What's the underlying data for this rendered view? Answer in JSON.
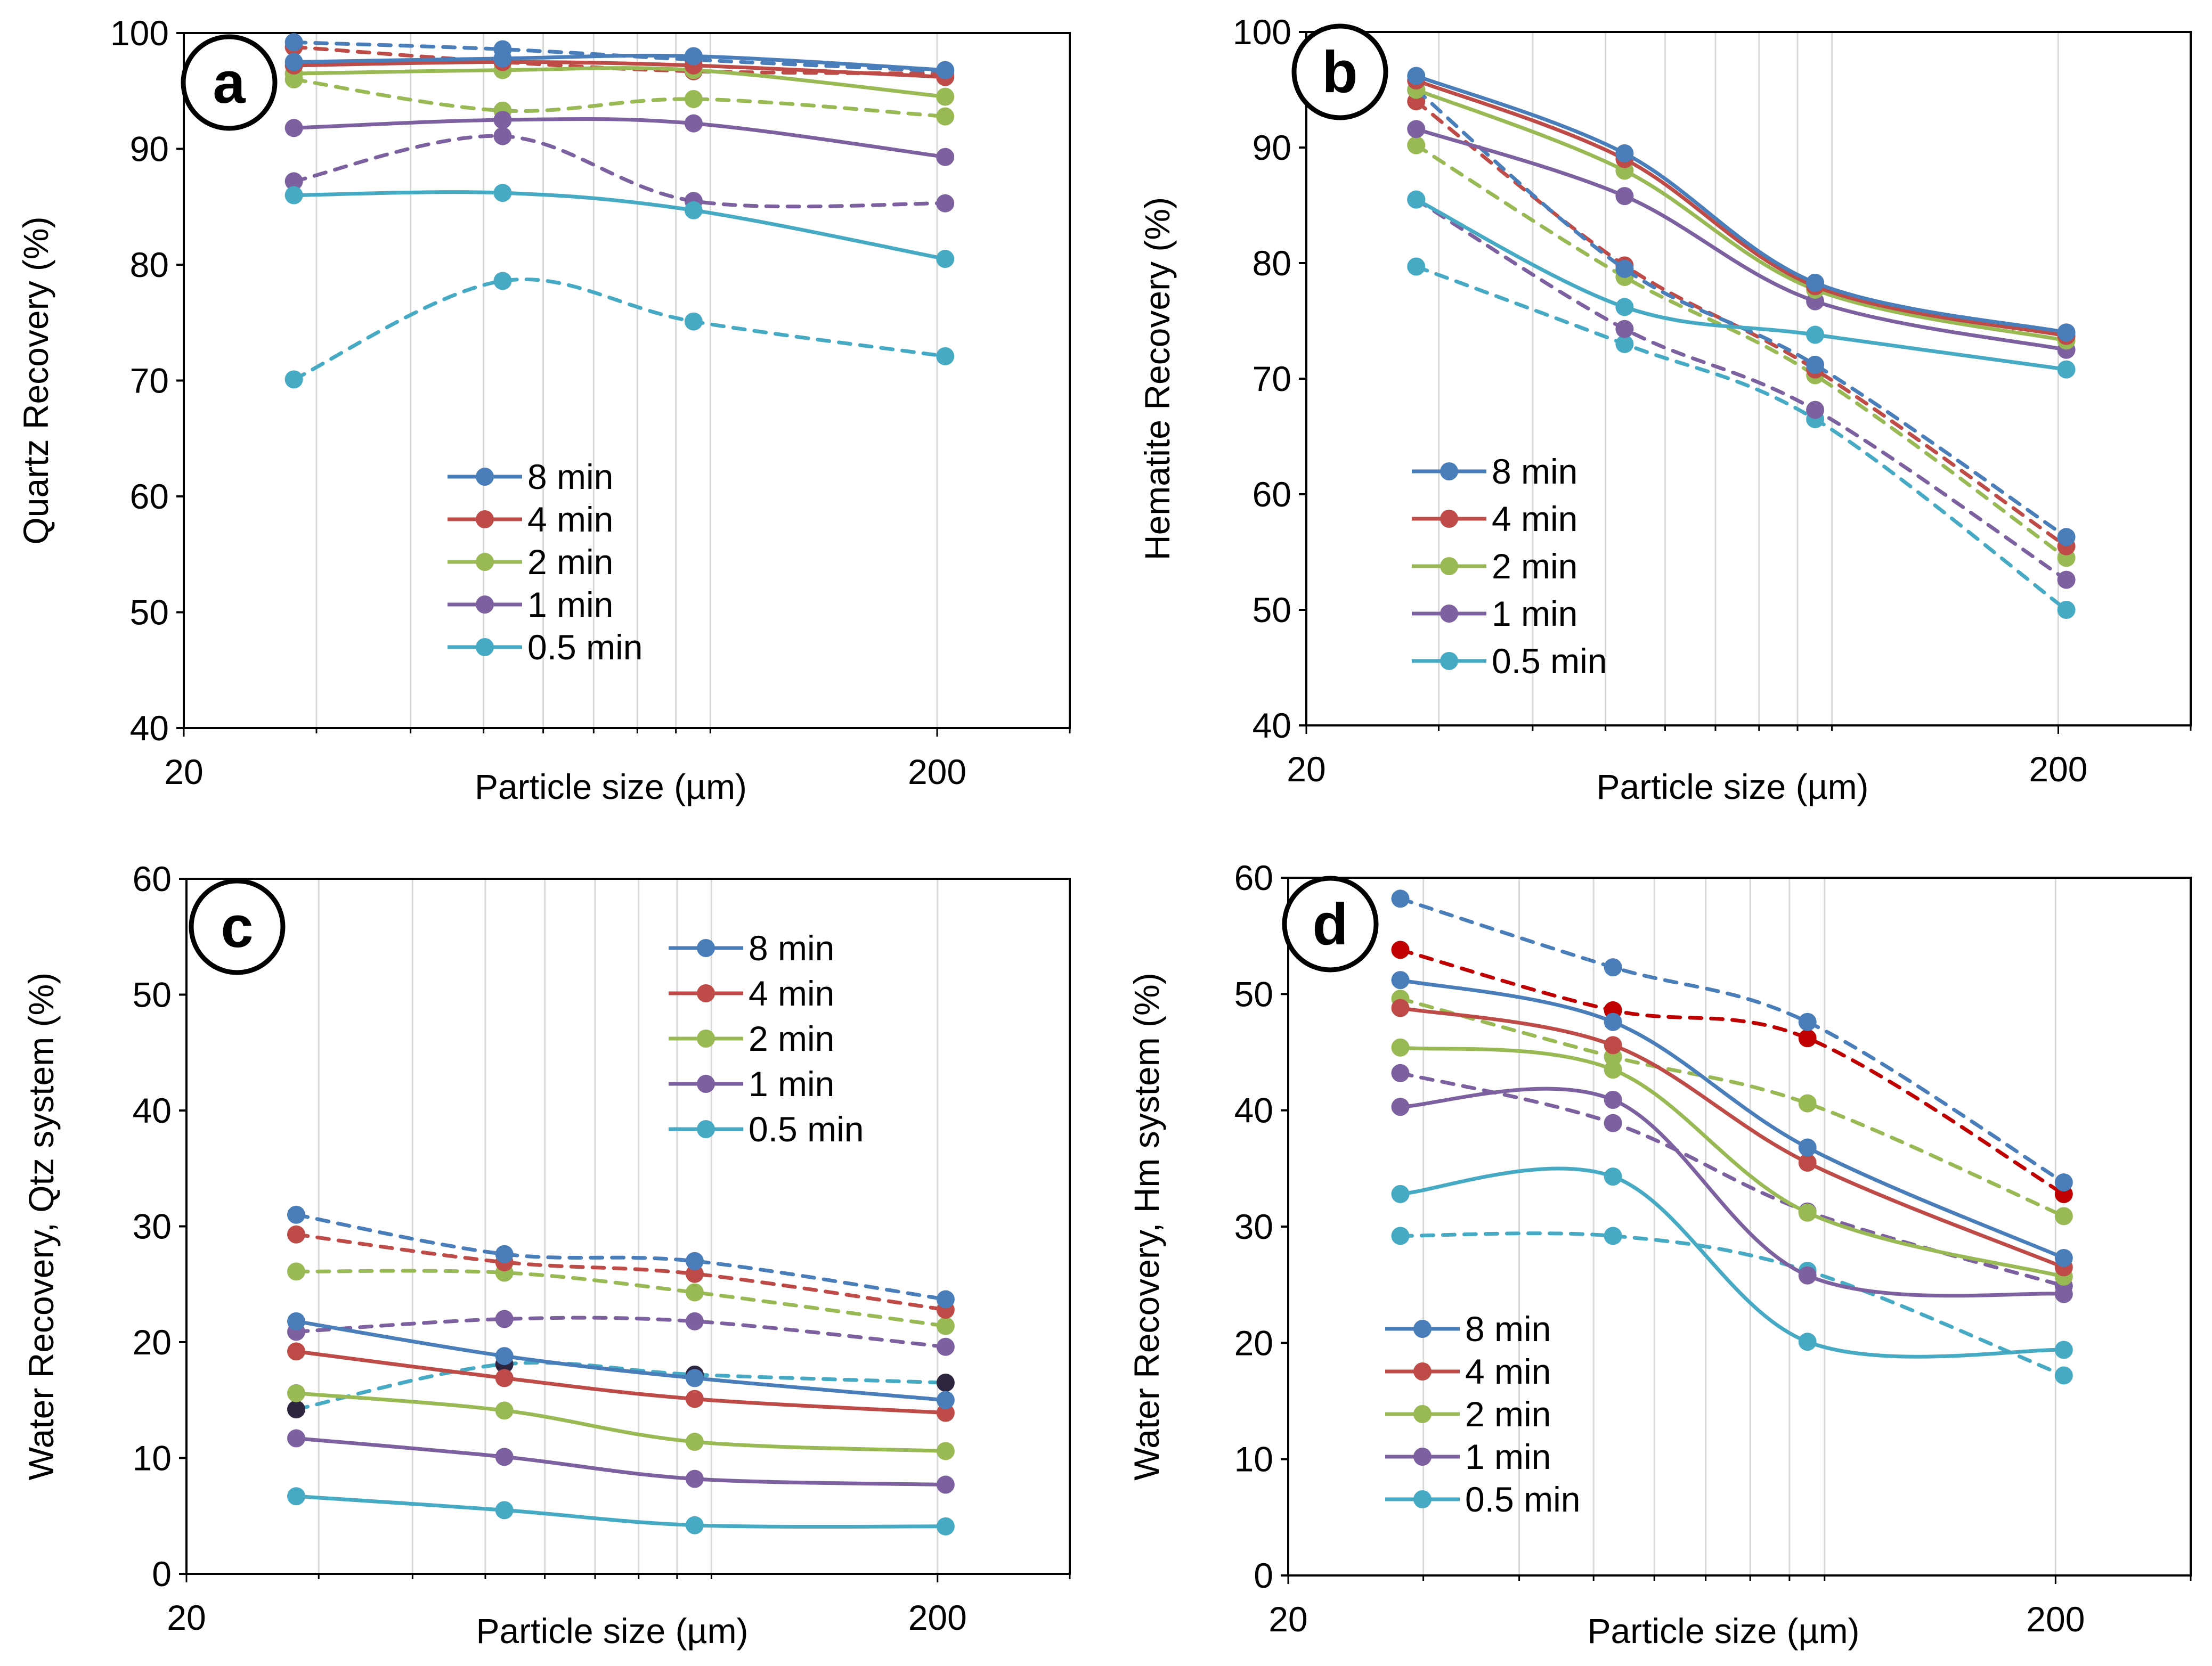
{
  "colors": {
    "8 min": "#4a7ebb",
    "4 min": "#be4b48",
    "2 min": "#98b954",
    "1 min": "#7d60a0",
    "0.5 min": "#46aac5",
    "dark_red": "#c00000",
    "dark_navy": "#2e2540"
  },
  "chart_data": [
    {
      "panel": "a",
      "type": "line",
      "xscale": "log",
      "xlim": [
        20,
        300
      ],
      "ylim": [
        40,
        100
      ],
      "yticks": [
        40,
        50,
        60,
        70,
        80,
        90,
        100
      ],
      "xtick_labels": [
        "20",
        "200"
      ],
      "xlabel": "Particle size (µm)",
      "ylabel": "Quartz Recovery (%)",
      "legend": [
        "8 min",
        "4 min",
        "2 min",
        "1 min",
        "0.5 min"
      ],
      "legend_position": "center-left",
      "x": [
        28,
        53,
        95,
        205
      ],
      "series": [
        {
          "name": "8 min",
          "style": "solid",
          "values": [
            97.5,
            97.8,
            98.0,
            96.8
          ]
        },
        {
          "name": "4 min",
          "style": "solid",
          "values": [
            97.2,
            97.5,
            97.2,
            96.2
          ]
        },
        {
          "name": "2 min",
          "style": "solid",
          "values": [
            96.5,
            96.8,
            96.8,
            94.5
          ]
        },
        {
          "name": "1 min",
          "style": "solid",
          "values": [
            91.8,
            92.5,
            92.2,
            89.3
          ]
        },
        {
          "name": "0.5 min",
          "style": "solid",
          "values": [
            86.0,
            86.2,
            84.7,
            80.5
          ]
        },
        {
          "name": "8 min",
          "style": "dashed",
          "values": [
            99.2,
            98.6,
            97.7,
            96.7
          ]
        },
        {
          "name": "4 min",
          "style": "dashed",
          "values": [
            98.8,
            97.5,
            96.7,
            96.5
          ]
        },
        {
          "name": "2 min",
          "style": "dashed",
          "values": [
            96.0,
            93.3,
            94.3,
            92.8
          ]
        },
        {
          "name": "1 min",
          "style": "dashed",
          "values": [
            87.2,
            91.1,
            85.5,
            85.3
          ]
        },
        {
          "name": "0.5 min",
          "style": "dashed",
          "values": [
            70.1,
            78.6,
            75.1,
            72.1
          ]
        }
      ]
    },
    {
      "panel": "b",
      "type": "line",
      "xscale": "log",
      "xlim": [
        20,
        300
      ],
      "ylim": [
        40,
        100
      ],
      "yticks": [
        40,
        50,
        60,
        70,
        80,
        90,
        100
      ],
      "xtick_labels": [
        "20",
        "200"
      ],
      "xlabel": "Particle size (µm)",
      "ylabel": "Hematite Recovery (%)",
      "legend": [
        "8 min",
        "4 min",
        "2 min",
        "1 min",
        "0.5 min"
      ],
      "legend_position": "bottom-left",
      "x": [
        28,
        53,
        95,
        205
      ],
      "series": [
        {
          "name": "8 min",
          "style": "solid",
          "values": [
            96.2,
            89.5,
            78.3,
            74.0
          ]
        },
        {
          "name": "4 min",
          "style": "solid",
          "values": [
            95.8,
            89.0,
            78.0,
            73.7
          ]
        },
        {
          "name": "2 min",
          "style": "solid",
          "values": [
            95.0,
            88.0,
            77.7,
            73.3
          ]
        },
        {
          "name": "1 min",
          "style": "solid",
          "values": [
            91.6,
            85.8,
            76.7,
            72.5
          ]
        },
        {
          "name": "0.5 min",
          "style": "solid",
          "values": [
            85.5,
            76.2,
            73.8,
            70.8
          ]
        },
        {
          "name": "8 min",
          "style": "dashed",
          "values": [
            95.0,
            79.5,
            71.2,
            56.3
          ]
        },
        {
          "name": "4 min",
          "style": "dashed",
          "values": [
            94.0,
            79.8,
            70.8,
            55.5
          ]
        },
        {
          "name": "2 min",
          "style": "dashed",
          "values": [
            90.2,
            78.8,
            70.3,
            54.5
          ]
        },
        {
          "name": "1 min",
          "style": "dashed",
          "values": [
            85.5,
            74.3,
            67.3,
            52.6
          ]
        },
        {
          "name": "0.5 min",
          "style": "dashed",
          "values": [
            79.7,
            73.0,
            66.5,
            50.0
          ]
        }
      ]
    },
    {
      "panel": "c",
      "type": "line",
      "xscale": "log",
      "xlim": [
        20,
        300
      ],
      "ylim": [
        0,
        60
      ],
      "yticks": [
        0,
        10,
        20,
        30,
        40,
        50,
        60
      ],
      "xtick_labels": [
        "20",
        "200"
      ],
      "xlabel": "Particle size (µm)",
      "ylabel": "Water Recovery, Qtz system (%)",
      "legend": [
        "8 min",
        "4 min",
        "2 min",
        "1 min",
        "0.5 min"
      ],
      "legend_position": "top-right",
      "x": [
        28,
        53,
        95,
        205
      ],
      "series": [
        {
          "name": "8 min",
          "style": "solid",
          "values": [
            21.8,
            18.8,
            16.9,
            15.0
          ]
        },
        {
          "name": "4 min",
          "style": "solid",
          "values": [
            19.2,
            16.9,
            15.1,
            13.9
          ]
        },
        {
          "name": "2 min",
          "style": "solid",
          "values": [
            15.6,
            14.1,
            11.4,
            10.6
          ]
        },
        {
          "name": "1 min",
          "style": "solid",
          "values": [
            11.7,
            10.1,
            8.2,
            7.7
          ]
        },
        {
          "name": "0.5 min",
          "style": "solid",
          "values": [
            6.7,
            5.5,
            4.2,
            4.1
          ]
        },
        {
          "name": "8 min",
          "style": "dashed",
          "values": [
            31.0,
            27.6,
            27.0,
            23.7
          ]
        },
        {
          "name": "4 min",
          "style": "dashed",
          "values": [
            29.3,
            26.9,
            25.9,
            22.8
          ]
        },
        {
          "name": "2 min",
          "style": "dashed",
          "values": [
            26.1,
            26.0,
            24.3,
            21.4
          ]
        },
        {
          "name": "1 min",
          "style": "dashed",
          "values": [
            20.9,
            22.0,
            21.8,
            19.6
          ]
        },
        {
          "name": "0.5 min",
          "style": "dashed",
          "values": [
            14.2,
            18.1,
            17.2,
            16.5
          ],
          "marker_color": "#2e2540"
        }
      ]
    },
    {
      "panel": "d",
      "type": "line",
      "xscale": "log",
      "xlim": [
        20,
        300
      ],
      "ylim": [
        0,
        60
      ],
      "yticks": [
        0,
        10,
        20,
        30,
        40,
        50,
        60
      ],
      "xtick_labels": [
        "20",
        "200"
      ],
      "xlabel": "Particle size (µm)",
      "ylabel": "Water Recovery, Hm system (%)",
      "legend": [
        "8 min",
        "4 min",
        "2 min",
        "1 min",
        "0.5 min"
      ],
      "legend_position": "bottom-left",
      "x": [
        28,
        53,
        95,
        205
      ],
      "series": [
        {
          "name": "8 min",
          "style": "solid",
          "values": [
            51.2,
            47.6,
            36.8,
            27.3
          ]
        },
        {
          "name": "4 min",
          "style": "solid",
          "values": [
            48.8,
            45.6,
            35.5,
            26.5
          ]
        },
        {
          "name": "2 min",
          "style": "solid",
          "values": [
            45.4,
            43.5,
            31.2,
            25.7
          ]
        },
        {
          "name": "1 min",
          "style": "solid",
          "values": [
            40.3,
            40.9,
            25.8,
            24.2
          ]
        },
        {
          "name": "0.5 min",
          "style": "solid",
          "values": [
            32.8,
            34.3,
            20.1,
            19.4
          ]
        },
        {
          "name": "8 min",
          "style": "dashed",
          "values": [
            58.2,
            52.3,
            47.6,
            33.8
          ]
        },
        {
          "name": "4 min",
          "style": "dashed",
          "values": [
            53.8,
            48.6,
            46.2,
            32.8
          ],
          "line_color": "#c00000"
        },
        {
          "name": "2 min",
          "style": "dashed",
          "values": [
            49.6,
            44.6,
            40.6,
            30.9
          ]
        },
        {
          "name": "1 min",
          "style": "dashed",
          "values": [
            43.2,
            38.9,
            31.3,
            24.9
          ]
        },
        {
          "name": "0.5 min",
          "style": "dashed",
          "values": [
            29.2,
            29.2,
            26.2,
            17.2
          ]
        }
      ]
    }
  ]
}
